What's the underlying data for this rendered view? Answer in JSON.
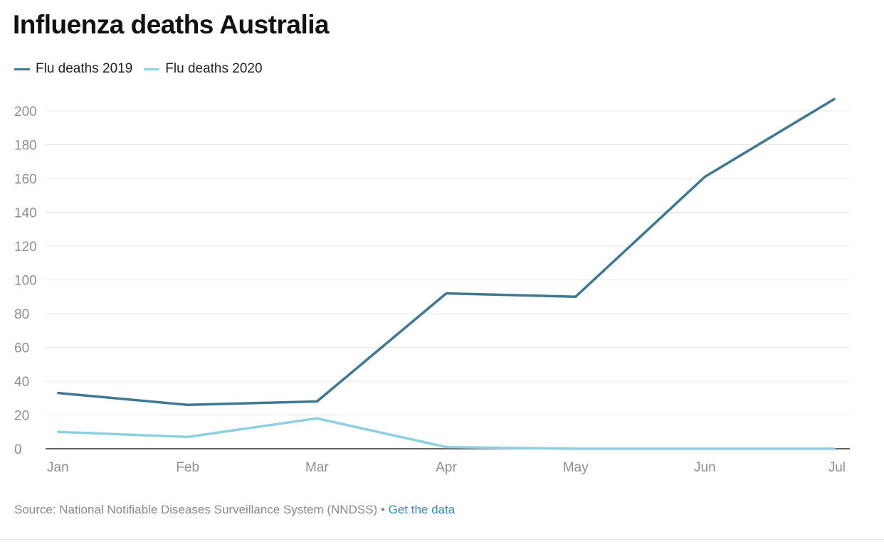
{
  "chart_data": {
    "type": "line",
    "title": "Influenza deaths Australia",
    "categories": [
      "Jan",
      "Feb",
      "Mar",
      "Apr",
      "May",
      "Jun",
      "Jul"
    ],
    "series": [
      {
        "name": "Flu deaths 2019",
        "color": "#3e7892",
        "values": [
          33,
          26,
          28,
          92,
          90,
          161,
          207
        ]
      },
      {
        "name": "Flu deaths 2020",
        "color": "#8dd0e0",
        "values": [
          10,
          7,
          18,
          1,
          0,
          0,
          0
        ]
      }
    ],
    "yticks": [
      0,
      20,
      40,
      60,
      80,
      100,
      120,
      140,
      160,
      180,
      200
    ],
    "ylim": [
      0,
      210
    ],
    "grid": true,
    "legend": "top-left"
  },
  "footer": {
    "source": "Source: National Notifiable Diseases Surveillance System (NNDSS)",
    "separator": " • ",
    "link": "Get the data"
  }
}
